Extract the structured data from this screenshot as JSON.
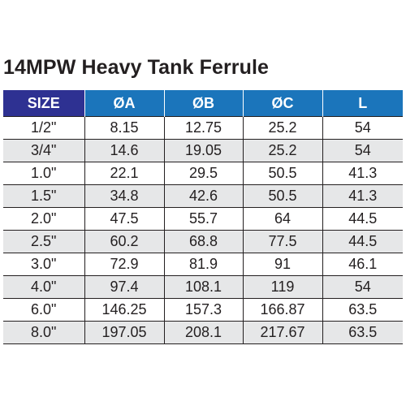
{
  "title": "14MPW Heavy Tank Ferrule",
  "colors": {
    "size_header_bg": "#2e3192",
    "header_bg": "#1b75bb",
    "alt_row_bg": "#e6e7e8",
    "text": "#231f20"
  },
  "table": {
    "headers": [
      "SIZE",
      "ØA",
      "ØB",
      "ØC",
      "L"
    ],
    "rows": [
      [
        "1/2\"",
        "8.15",
        "12.75",
        "25.2",
        "54"
      ],
      [
        "3/4\"",
        "14.6",
        "19.05",
        "25.2",
        "54"
      ],
      [
        "1.0\"",
        "22.1",
        "29.5",
        "50.5",
        "41.3"
      ],
      [
        "1.5\"",
        "34.8",
        "42.6",
        "50.5",
        "41.3"
      ],
      [
        "2.0\"",
        "47.5",
        "55.7",
        "64",
        "44.5"
      ],
      [
        "2.5\"",
        "60.2",
        "68.8",
        "77.5",
        "44.5"
      ],
      [
        "3.0\"",
        "72.9",
        "81.9",
        "91",
        "46.1"
      ],
      [
        "4.0\"",
        "97.4",
        "108.1",
        "119",
        "54"
      ],
      [
        "6.0\"",
        "146.25",
        "157.3",
        "166.87",
        "63.5"
      ],
      [
        "8.0\"",
        "197.05",
        "208.1",
        "217.67",
        "63.5"
      ]
    ]
  }
}
